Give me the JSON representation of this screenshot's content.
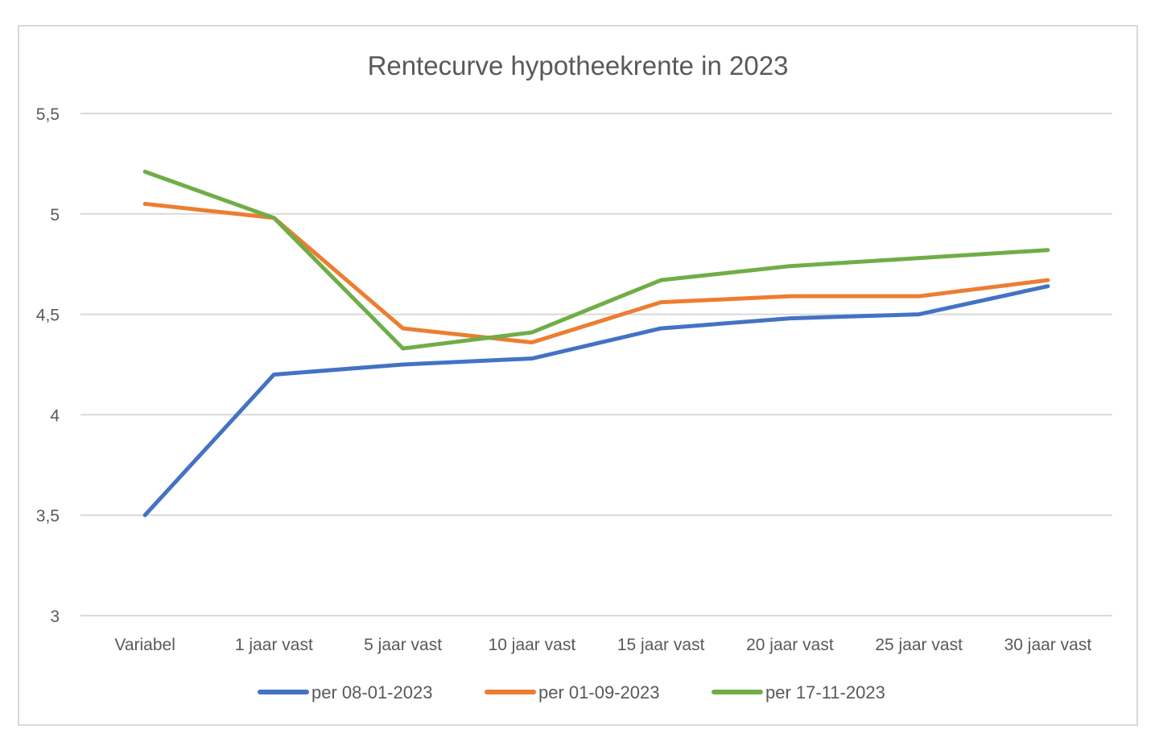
{
  "chart_data": {
    "type": "line",
    "title": "Rentecurve hypotheekrente in 2023",
    "xlabel": "",
    "ylabel": "",
    "categories": [
      "Variabel",
      "1 jaar vast",
      "5 jaar vast",
      "10 jaar vast",
      "15 jaar vast",
      "20 jaar vast",
      "25 jaar vast",
      "30 jaar vast"
    ],
    "ylim": [
      3,
      5.5
    ],
    "yticks": [
      3,
      3.5,
      4,
      4.5,
      5,
      5.5
    ],
    "ytick_labels": [
      "3",
      "3,5",
      "4",
      "4,5",
      "5",
      "5,5"
    ],
    "grid": true,
    "legend_position": "bottom",
    "series": [
      {
        "name": "per 08-01-2023",
        "color": "#4472c4",
        "values": [
          3.5,
          4.2,
          4.25,
          4.28,
          4.43,
          4.48,
          4.5,
          4.64
        ]
      },
      {
        "name": "per 01-09-2023",
        "color": "#ed7d31",
        "values": [
          5.05,
          4.98,
          4.43,
          4.36,
          4.56,
          4.59,
          4.59,
          4.67
        ]
      },
      {
        "name": "per 17-11-2023",
        "color": "#70ad47",
        "values": [
          5.21,
          4.98,
          4.33,
          4.41,
          4.67,
          4.74,
          4.78,
          4.82
        ]
      }
    ]
  }
}
